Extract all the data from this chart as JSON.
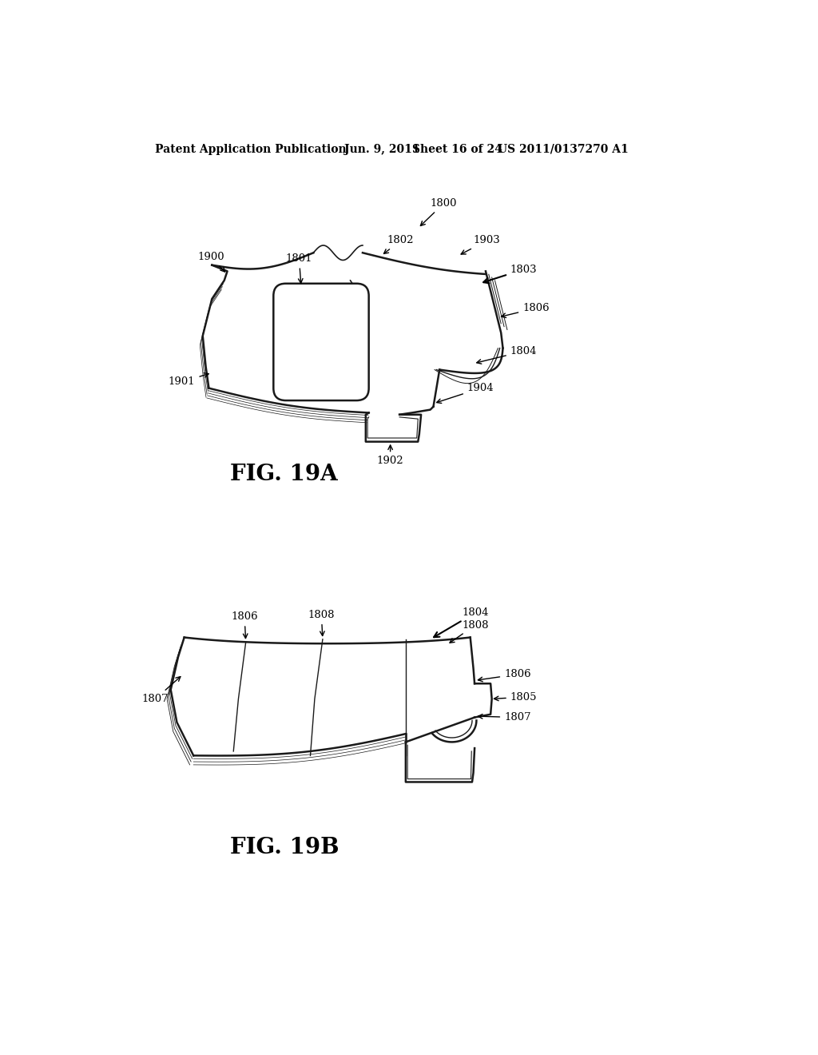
{
  "background_color": "#ffffff",
  "header_text": "Patent Application Publication",
  "header_date": "Jun. 9, 2011",
  "header_sheet": "Sheet 16 of 24",
  "header_patent": "US 2011/0137270 A1",
  "fig19a_label": "FIG. 19A",
  "fig19b_label": "FIG. 19B",
  "line_color": "#1a1a1a",
  "text_color": "#000000",
  "header_fontsize": 10,
  "label_fontsize": 9.5,
  "fig_label_fontsize": 20
}
